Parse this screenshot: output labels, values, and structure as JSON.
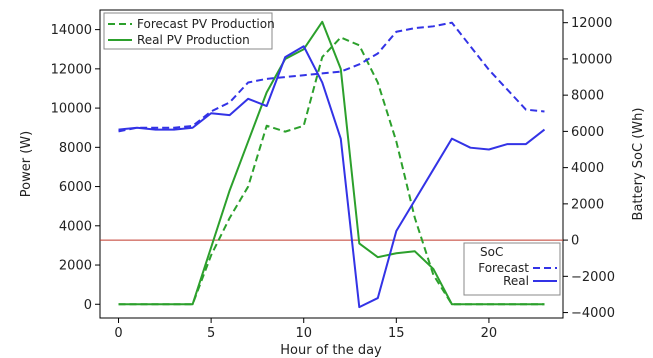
{
  "chart_data": {
    "type": "line",
    "xlabel": "Hour of the day",
    "ylabel_left": "Power (W)",
    "ylabel_right": "Battery SoC (Wh)",
    "xlim": [
      -1,
      24
    ],
    "ylim_left": [
      -700,
      15000
    ],
    "ylim_right": [
      -4300,
      12700
    ],
    "xticks": [
      0,
      5,
      10,
      15,
      20
    ],
    "yticks_left": [
      0,
      2000,
      4000,
      6000,
      8000,
      10000,
      12000,
      14000
    ],
    "yticks_right": [
      -4000,
      -2000,
      0,
      2000,
      4000,
      6000,
      8000,
      10000,
      12000
    ],
    "reference_line": {
      "axis": "right",
      "y": 0,
      "color": "#c0392b"
    },
    "legend_left": {
      "placement": "top-left",
      "entries": [
        "Forecast PV Production",
        "Real PV Production"
      ]
    },
    "legend_right": {
      "placement": "lower-right",
      "title": "SoC",
      "entries": [
        "Forecast",
        "Real"
      ]
    },
    "series": [
      {
        "name": "Forecast PV Production",
        "axis": "left",
        "color": "#2ca02c",
        "dash": true,
        "x": [
          0,
          1,
          2,
          3,
          4,
          5,
          6,
          7,
          8,
          9,
          10,
          11,
          12,
          13,
          14,
          15,
          16,
          17,
          18,
          19,
          20,
          21,
          22,
          23
        ],
        "y": [
          0,
          0,
          0,
          0,
          0,
          2500,
          4400,
          6000,
          9100,
          8800,
          9100,
          12600,
          13600,
          13200,
          11300,
          8300,
          4400,
          1500,
          0,
          0,
          0,
          0,
          0,
          0
        ]
      },
      {
        "name": "Real PV Production",
        "axis": "left",
        "color": "#2ca02c",
        "dash": false,
        "x": [
          0,
          1,
          2,
          3,
          4,
          5,
          6,
          7,
          8,
          9,
          10,
          11,
          12,
          13,
          14,
          15,
          16,
          17,
          18,
          19,
          20,
          21,
          22,
          23
        ],
        "y": [
          0,
          0,
          0,
          0,
          0,
          2900,
          5800,
          8300,
          10800,
          12500,
          13000,
          14400,
          12000,
          3100,
          2400,
          2600,
          2700,
          1800,
          0,
          0,
          0,
          0,
          0,
          0
        ]
      },
      {
        "name": "Forecast",
        "axis": "right",
        "color": "#3333e6",
        "dash": true,
        "x": [
          0,
          1,
          2,
          3,
          4,
          5,
          6,
          7,
          8,
          9,
          10,
          11,
          12,
          13,
          14,
          15,
          16,
          17,
          18,
          19,
          20,
          21,
          22,
          23
        ],
        "y": [
          6000,
          6200,
          6200,
          6200,
          6300,
          7100,
          7600,
          8700,
          8900,
          9000,
          9100,
          9200,
          9300,
          9700,
          10300,
          11500,
          11700,
          11800,
          12000,
          10700,
          9400,
          8300,
          7200,
          7100
        ]
      },
      {
        "name": "Real",
        "axis": "right",
        "color": "#3333e6",
        "dash": false,
        "x": [
          0,
          1,
          2,
          3,
          4,
          5,
          6,
          7,
          8,
          9,
          10,
          11,
          12,
          13,
          14,
          15,
          16,
          17,
          18,
          19,
          20,
          21,
          22,
          23
        ],
        "y": [
          6100,
          6200,
          6100,
          6100,
          6200,
          7000,
          6900,
          7800,
          7400,
          10100,
          10700,
          8700,
          5600,
          -3700,
          -3200,
          500,
          2200,
          3900,
          5600,
          5100,
          5000,
          5300,
          5300,
          6100
        ]
      }
    ]
  }
}
